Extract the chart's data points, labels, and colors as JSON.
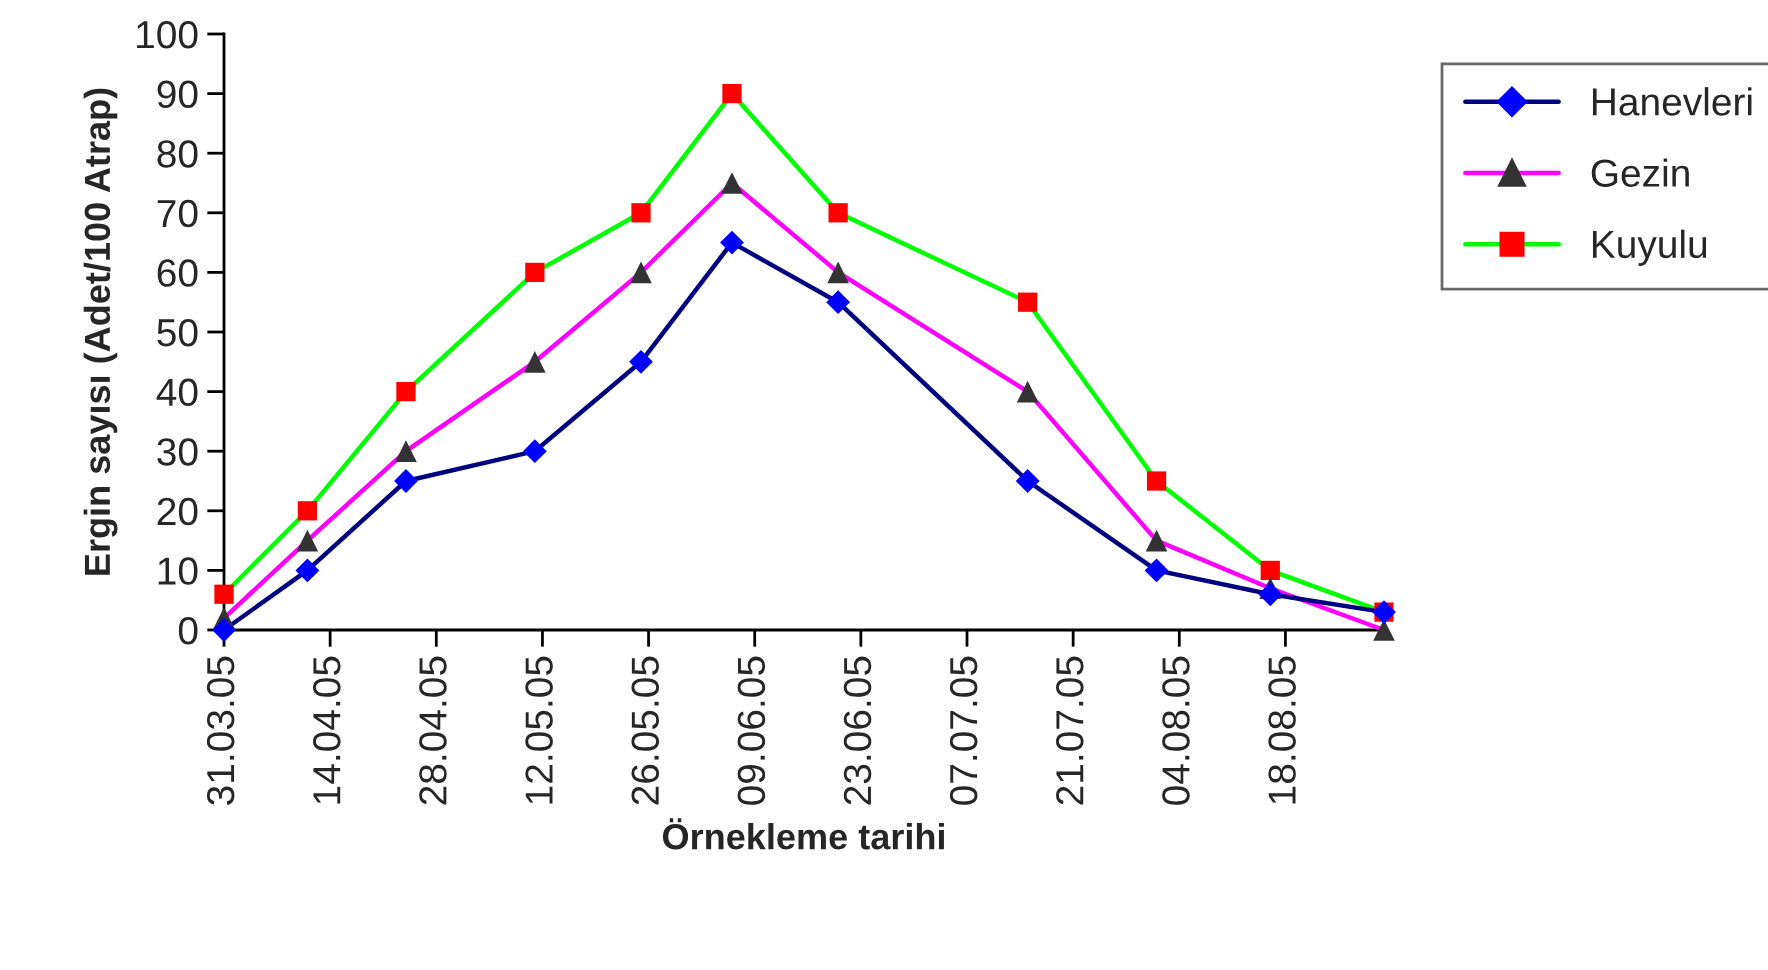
{
  "chart_data": {
    "type": "line",
    "xlabel": "Örnekleme tarihi",
    "ylabel": "Ergin sayısı (Adet/100 Atrap)",
    "x": [
      "2005-03-31",
      "2005-04-11",
      "2005-04-24",
      "2005-05-11",
      "2005-05-25",
      "2005-06-06",
      "2005-06-20",
      "2005-07-15",
      "2005-08-01",
      "2005-08-16",
      "2005-08-31"
    ],
    "series": [
      {
        "name": "Hanevleri",
        "color": "#000080",
        "colors": [
          "#0000ff",
          "#0000ff",
          "#0000ff",
          "#0000ff",
          "#0000ff",
          "#0000ff",
          "#0000ff",
          "#0000ff",
          "#0000ff",
          "#0000ff",
          "#0000ff"
        ],
        "marker": "diamond",
        "values": [
          0,
          10,
          25,
          30,
          45,
          65,
          55,
          25,
          10,
          6,
          3
        ]
      },
      {
        "name": "Gezin",
        "color": "#ff00ff",
        "colors": [
          "#333333",
          "#333333",
          "#333333",
          "#333333",
          "#333333",
          "#333333",
          "#333333",
          "#333333",
          "#333333",
          "#333333",
          "#333333"
        ],
        "marker": "triangle",
        "values": [
          2,
          15,
          30,
          45,
          60,
          75,
          60,
          40,
          15,
          7,
          0
        ]
      },
      {
        "name": "Kuyulu",
        "color": "#00ff00",
        "colors": [
          "#ff0000",
          "#ff0000",
          "#ff0000",
          "#ff0000",
          "#ff0000",
          "#ff0000",
          "#ff0000",
          "#ff0000",
          "#ff0000",
          "#ff0000",
          "#ff0000"
        ],
        "marker": "square",
        "values": [
          6,
          20,
          40,
          60,
          70,
          90,
          70,
          55,
          25,
          10,
          3
        ]
      }
    ],
    "xlim": [
      "2005-03-31",
      "2005-08-31"
    ],
    "xticks": [
      {
        "value": "2005-03-31",
        "label": "31.03.05"
      },
      {
        "value": "2005-04-14",
        "label": "14.04.05"
      },
      {
        "value": "2005-04-28",
        "label": "28.04.05"
      },
      {
        "value": "2005-05-12",
        "label": "12.05.05"
      },
      {
        "value": "2005-05-26",
        "label": "26.05.05"
      },
      {
        "value": "2005-06-09",
        "label": "09.06.05"
      },
      {
        "value": "2005-06-23",
        "label": "23.06.05"
      },
      {
        "value": "2005-07-07",
        "label": "07.07.05"
      },
      {
        "value": "2005-07-21",
        "label": "21.07.05"
      },
      {
        "value": "2005-08-04",
        "label": "04.08.05"
      },
      {
        "value": "2005-08-18",
        "label": "18.08.05"
      }
    ],
    "ylim": [
      0,
      100
    ],
    "yticks": [
      0,
      10,
      20,
      30,
      40,
      50,
      60,
      70,
      80,
      90,
      100
    ],
    "grid": false,
    "legend": "right",
    "line_style": "solid"
  }
}
